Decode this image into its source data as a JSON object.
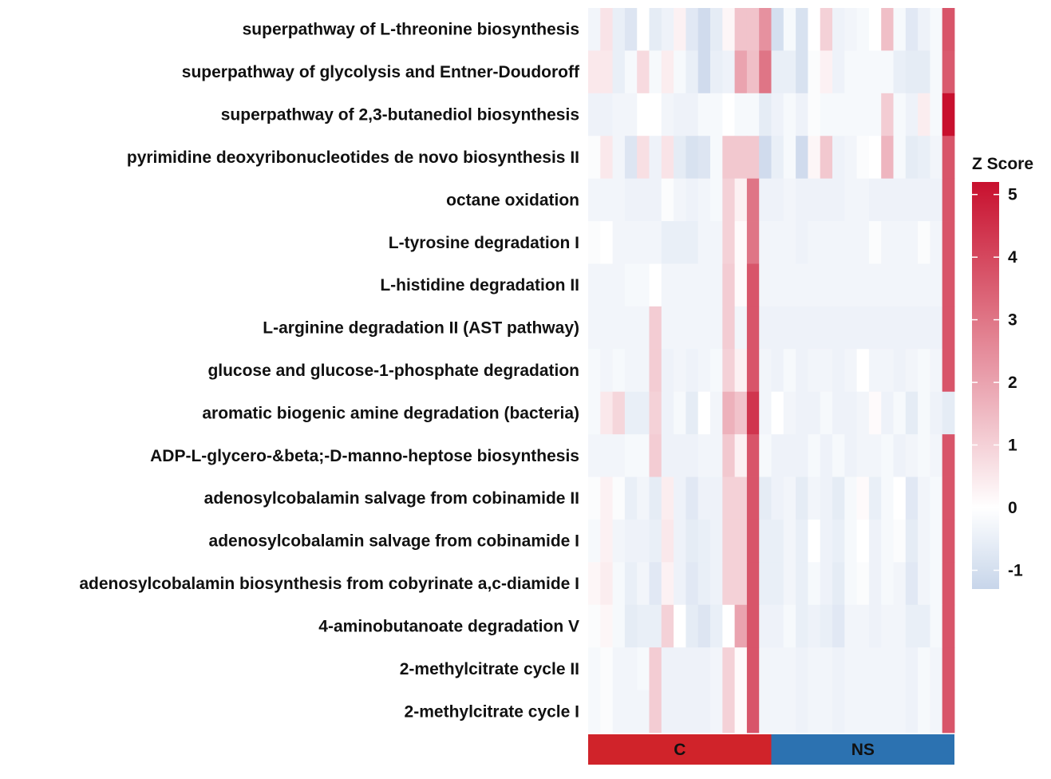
{
  "chart_data": {
    "type": "heatmap",
    "rows": [
      "superpathway of L-threonine biosynthesis",
      "superpathway of glycolysis and Entner-Doudoroff",
      "superpathway of 2,3-butanediol biosynthesis",
      "pyrimidine deoxyribonucleotides de novo biosynthesis II",
      "octane oxidation",
      "L-tyrosine degradation I",
      "L-histidine degradation II",
      "L-arginine degradation II (AST pathway)",
      "glucose and glucose-1-phosphate degradation",
      "aromatic biogenic amine degradation (bacteria)",
      "ADP-L-glycero-&beta;-D-manno-heptose biosynthesis",
      "adenosylcobalamin salvage from cobinamide II",
      "adenosylcobalamin salvage from cobinamide I",
      "adenosylcobalamin biosynthesis from cobyrinate a,c-diamide I",
      "4-aminobutanoate degradation V",
      "2-methylcitrate cycle II",
      "2-methylcitrate cycle I"
    ],
    "groups": [
      {
        "name": "C",
        "count": 15,
        "color": "#d0232a"
      },
      {
        "name": "NS",
        "count": 15,
        "color": "#2c72b1"
      }
    ],
    "values": [
      [
        -0.3,
        0.6,
        -0.5,
        -0.8,
        0.0,
        -0.6,
        -0.4,
        0.3,
        -0.7,
        -1.1,
        -0.6,
        0.2,
        1.3,
        1.3,
        2.4,
        -1.0,
        -0.2,
        -0.9,
        0.0,
        1.0,
        -0.4,
        -0.3,
        -0.2,
        0.0,
        1.4,
        -0.2,
        -0.7,
        -0.4,
        -0.2,
        3.7
      ],
      [
        0.5,
        0.5,
        -0.5,
        -0.2,
        0.8,
        -0.2,
        0.4,
        -0.2,
        -0.5,
        -1.1,
        -0.5,
        -0.4,
        2.0,
        1.4,
        3.0,
        -0.5,
        -0.5,
        -0.9,
        -0.1,
        0.3,
        -0.4,
        -0.2,
        -0.2,
        -0.2,
        -0.2,
        -0.5,
        -0.6,
        -0.6,
        -0.2,
        3.6
      ],
      [
        -0.4,
        -0.4,
        -0.3,
        -0.3,
        0.0,
        0.0,
        -0.3,
        -0.4,
        -0.4,
        -0.2,
        -0.2,
        0.0,
        -0.2,
        -0.2,
        -0.6,
        -0.4,
        -0.2,
        -0.4,
        -0.1,
        -0.2,
        -0.2,
        -0.2,
        -0.2,
        -0.2,
        1.1,
        -0.2,
        -0.4,
        0.4,
        -0.2,
        5.2
      ],
      [
        -0.1,
        0.5,
        -0.3,
        -0.8,
        0.7,
        -0.4,
        0.6,
        -0.6,
        -0.9,
        -0.8,
        -0.2,
        1.2,
        1.2,
        1.2,
        -1.1,
        -0.5,
        -0.2,
        -1.1,
        0.2,
        1.2,
        -0.4,
        -0.3,
        -0.1,
        0.0,
        1.6,
        -0.2,
        -0.6,
        -0.5,
        -0.3,
        3.7
      ],
      [
        -0.3,
        -0.3,
        -0.3,
        -0.4,
        -0.4,
        -0.4,
        -0.1,
        -0.3,
        -0.4,
        -0.3,
        -0.2,
        1.0,
        0.3,
        3.0,
        -0.4,
        -0.4,
        -0.3,
        -0.4,
        -0.4,
        -0.4,
        -0.4,
        -0.3,
        -0.3,
        -0.4,
        -0.4,
        -0.4,
        -0.4,
        -0.4,
        -0.4,
        3.7
      ],
      [
        -0.1,
        0.0,
        -0.3,
        -0.3,
        -0.3,
        -0.3,
        -0.5,
        -0.5,
        -0.5,
        -0.3,
        -0.3,
        1.0,
        0.1,
        3.0,
        -0.3,
        -0.3,
        -0.3,
        -0.4,
        -0.3,
        -0.3,
        -0.3,
        -0.3,
        -0.3,
        -0.1,
        -0.3,
        -0.3,
        -0.3,
        -0.1,
        -0.3,
        3.7
      ],
      [
        -0.3,
        -0.3,
        -0.3,
        -0.2,
        -0.2,
        0.0,
        -0.3,
        -0.3,
        -0.3,
        -0.3,
        -0.3,
        1.1,
        0.1,
        3.7,
        -0.3,
        -0.3,
        -0.3,
        -0.3,
        -0.3,
        -0.3,
        -0.3,
        -0.3,
        -0.3,
        -0.3,
        -0.3,
        -0.3,
        -0.3,
        -0.3,
        -0.3,
        3.7
      ],
      [
        -0.3,
        -0.3,
        -0.3,
        -0.3,
        -0.3,
        1.1,
        -0.3,
        -0.3,
        -0.3,
        -0.3,
        -0.3,
        1.1,
        -0.3,
        3.7,
        -0.4,
        -0.4,
        -0.4,
        -0.4,
        -0.4,
        -0.4,
        -0.4,
        -0.4,
        -0.4,
        -0.4,
        -0.4,
        -0.4,
        -0.4,
        -0.4,
        -0.4,
        3.7
      ],
      [
        -0.2,
        -0.3,
        -0.2,
        -0.3,
        -0.3,
        1.1,
        -0.4,
        -0.3,
        -0.4,
        -0.3,
        -0.2,
        1.0,
        0.3,
        3.7,
        -0.3,
        -0.4,
        -0.2,
        -0.4,
        -0.3,
        -0.3,
        -0.4,
        -0.3,
        0.0,
        -0.3,
        -0.3,
        -0.4,
        -0.3,
        -0.2,
        -0.3,
        3.7
      ],
      [
        -0.2,
        0.5,
        0.9,
        -0.5,
        -0.5,
        1.0,
        -0.4,
        -0.2,
        -0.6,
        0.0,
        -0.3,
        1.7,
        1.3,
        4.4,
        -0.3,
        0.0,
        -0.3,
        -0.4,
        -0.4,
        -0.2,
        -0.4,
        -0.4,
        -0.3,
        0.1,
        -0.4,
        -0.2,
        -0.6,
        -0.2,
        -0.4,
        -0.6
      ],
      [
        -0.3,
        -0.3,
        -0.3,
        -0.2,
        -0.2,
        1.1,
        -0.4,
        -0.4,
        -0.4,
        -0.3,
        -0.3,
        1.2,
        0.3,
        3.7,
        -0.2,
        -0.4,
        -0.4,
        -0.4,
        -0.2,
        -0.4,
        -0.2,
        -0.4,
        -0.3,
        -0.3,
        -0.2,
        -0.4,
        -0.3,
        -0.2,
        -0.3,
        3.7
      ],
      [
        -0.1,
        0.3,
        -0.1,
        -0.5,
        -0.3,
        -0.6,
        0.4,
        -0.4,
        -0.7,
        -0.4,
        -0.4,
        1.0,
        1.0,
        3.7,
        -0.6,
        -0.4,
        -0.3,
        -0.6,
        -0.3,
        -0.4,
        -0.6,
        -0.2,
        0.1,
        -0.5,
        -0.2,
        0.0,
        -0.7,
        -0.3,
        -0.2,
        3.7
      ],
      [
        -0.2,
        0.3,
        -0.3,
        -0.4,
        -0.4,
        -0.5,
        0.5,
        -0.4,
        -0.6,
        -0.5,
        -0.4,
        1.0,
        1.0,
        3.7,
        -0.5,
        -0.5,
        -0.3,
        -0.5,
        0.0,
        -0.4,
        -0.5,
        -0.2,
        0.0,
        -0.4,
        -0.2,
        -0.1,
        -0.6,
        -0.3,
        -0.2,
        3.7
      ],
      [
        0.2,
        0.4,
        -0.2,
        -0.5,
        -0.3,
        -0.7,
        0.3,
        -0.4,
        -0.7,
        -0.5,
        -0.4,
        1.0,
        1.0,
        3.7,
        -0.5,
        -0.5,
        -0.3,
        -0.5,
        -0.2,
        -0.4,
        -0.6,
        -0.2,
        -0.1,
        -0.4,
        -0.2,
        -0.3,
        -0.7,
        -0.3,
        -0.2,
        3.7
      ],
      [
        -0.1,
        0.2,
        -0.2,
        -0.6,
        -0.5,
        -0.5,
        1.0,
        0.0,
        -0.6,
        -0.8,
        -0.5,
        0.0,
        2.0,
        3.7,
        -0.4,
        -0.4,
        -0.2,
        -0.5,
        -0.4,
        -0.5,
        -0.7,
        -0.3,
        -0.3,
        -0.4,
        -0.3,
        -0.3,
        -0.5,
        -0.5,
        -0.2,
        3.7
      ],
      [
        -0.2,
        -0.1,
        -0.3,
        -0.3,
        -0.2,
        1.1,
        -0.4,
        -0.4,
        -0.4,
        -0.4,
        -0.3,
        1.0,
        0.1,
        3.7,
        -0.3,
        -0.3,
        -0.3,
        -0.4,
        -0.3,
        -0.3,
        -0.4,
        -0.3,
        -0.3,
        -0.3,
        -0.3,
        -0.3,
        -0.4,
        -0.2,
        -0.3,
        3.7
      ],
      [
        -0.2,
        -0.1,
        -0.3,
        -0.3,
        -0.3,
        1.1,
        -0.4,
        -0.4,
        -0.4,
        -0.4,
        -0.3,
        1.0,
        0.1,
        3.7,
        -0.3,
        -0.3,
        -0.3,
        -0.4,
        -0.3,
        -0.3,
        -0.4,
        -0.3,
        -0.3,
        -0.3,
        -0.3,
        -0.3,
        -0.4,
        -0.2,
        -0.3,
        3.7
      ]
    ],
    "scale": {
      "title": "Z Score",
      "min": -1.3,
      "max": 5.2,
      "ticks": [
        -1,
        0,
        1,
        2,
        3,
        4,
        5
      ],
      "low_color": "#c7d5ea",
      "mid_color": "#ffffff",
      "high_color": "#c8102e",
      "mid_value": 0
    }
  }
}
